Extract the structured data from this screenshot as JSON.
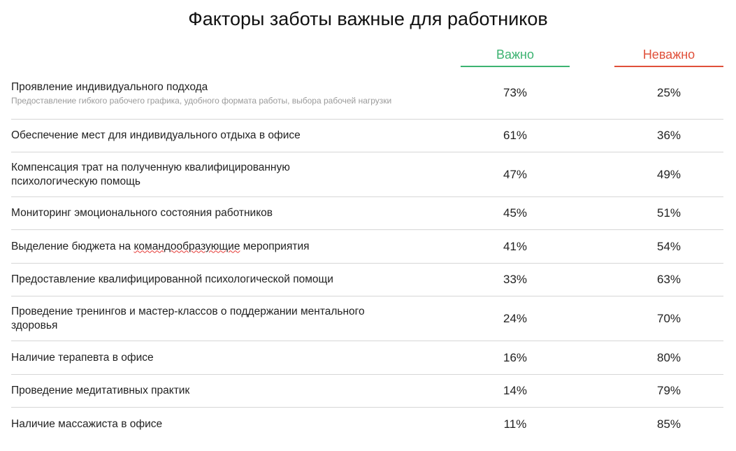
{
  "chart_data": {
    "type": "table",
    "title": "Факторы заботы важные для работников",
    "columns": [
      {
        "name": "Важно",
        "color": "#3cb371"
      },
      {
        "name": "Неважно",
        "color": "#e0503a"
      }
    ],
    "rows": [
      {
        "label": "Проявление индивидуального подхода",
        "sublabel": "Предоставление гибкого рабочего графика, удобного формата работы, выбора рабочей нагрузки",
        "important": "73%",
        "unimportant": "25%"
      },
      {
        "label": "Обеспечение мест для индивидуального отдыха в офисе",
        "important": "61%",
        "unimportant": "36%"
      },
      {
        "label": "Компенсация трат на полученную квалифицированную психологическую помощь",
        "important": "47%",
        "unimportant": "49%"
      },
      {
        "label": "Мониторинг эмоционального состояния работников",
        "important": "45%",
        "unimportant": "51%"
      },
      {
        "label_before": "Выделение бюджета на ",
        "label_marked": "командообразующие",
        "label_after": " мероприятия",
        "important": "41%",
        "unimportant": "54%"
      },
      {
        "label": "Предоставление квалифицированной психологической помощи",
        "important": "33%",
        "unimportant": "63%"
      },
      {
        "label": "Проведение тренингов и мастер-классов о поддержании ментального здоровья",
        "important": "24%",
        "unimportant": "70%"
      },
      {
        "label": "Наличие терапевта в офисе",
        "important": "16%",
        "unimportant": "80%"
      },
      {
        "label": "Проведение медитативных практик",
        "important": "14%",
        "unimportant": "79%"
      },
      {
        "label": "Наличие массажиста в офисе",
        "important": "11%",
        "unimportant": "85%"
      }
    ]
  }
}
